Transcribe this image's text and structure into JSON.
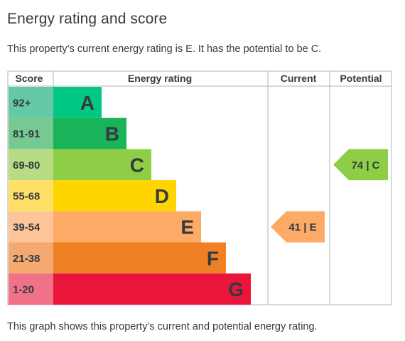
{
  "title": "Energy rating and score",
  "intro": "This property’s current energy rating is E. It has the potential to be C.",
  "footer": "This graph shows this property’s current and potential energy rating.",
  "headers": {
    "score": "Score",
    "rating": "Energy rating",
    "current": "Current",
    "potential": "Potential"
  },
  "chart_data": {
    "type": "bar",
    "categories": [
      "A",
      "B",
      "C",
      "D",
      "E",
      "F",
      "G"
    ],
    "score_ranges": [
      "92+",
      "81-91",
      "69-80",
      "55-68",
      "39-54",
      "21-38",
      "1-20"
    ],
    "bar_colors": [
      "#00c781",
      "#19b459",
      "#8dce46",
      "#ffd500",
      "#fcaa65",
      "#ef8023",
      "#e9153b"
    ],
    "score_cell_colors": [
      "#65c9a5",
      "#76ca91",
      "#b8dc83",
      "#ffe066",
      "#fdc598",
      "#f4a970",
      "#f07289"
    ],
    "current": {
      "value": 41,
      "band": "E",
      "label": "41 | E",
      "color": "#fcaa65"
    },
    "potential": {
      "value": 74,
      "band": "C",
      "label": "74 | C",
      "color": "#8dce46"
    }
  }
}
